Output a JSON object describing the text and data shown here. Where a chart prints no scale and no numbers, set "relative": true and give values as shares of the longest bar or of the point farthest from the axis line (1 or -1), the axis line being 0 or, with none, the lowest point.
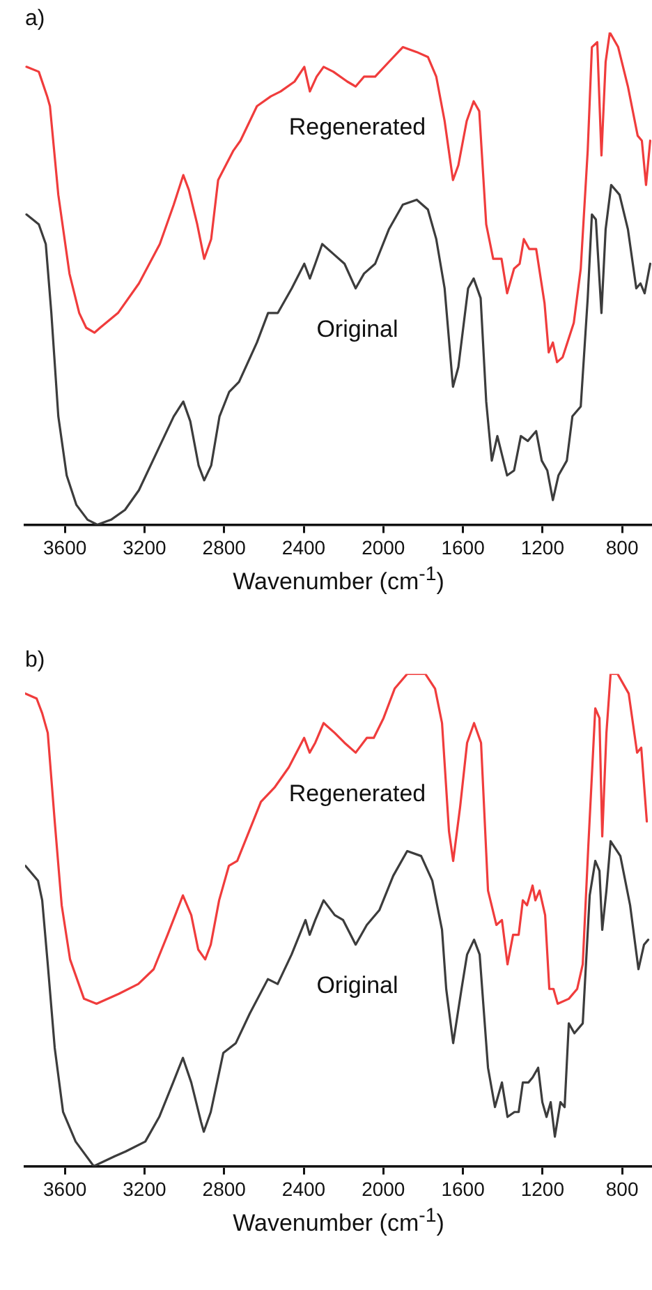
{
  "chart_data": [
    {
      "type": "line",
      "title": "a)",
      "xlabel": "Wavenumber (cm$^{-1}$)",
      "relative": true,
      "xlim": [
        3800,
        650
      ],
      "xticks": [
        3600,
        3200,
        2800,
        2400,
        2000,
        1600,
        1200,
        800
      ],
      "series": [
        {
          "name": "Regenerated",
          "color": "#f03c3c",
          "x": [
            3793,
            3731,
            3689,
            3675,
            3633,
            3577,
            3528,
            3493,
            3451,
            3423,
            3333,
            3228,
            3123,
            3053,
            3005,
            2977,
            2935,
            2900,
            2865,
            2830,
            2753,
            2718,
            2635,
            2565,
            2516,
            2446,
            2397,
            2369,
            2335,
            2300,
            2251,
            2181,
            2139,
            2097,
            2041,
            1972,
            1902,
            1832,
            1776,
            1734,
            1692,
            1650,
            1623,
            1581,
            1546,
            1518,
            1483,
            1448,
            1406,
            1378,
            1343,
            1315,
            1294,
            1267,
            1232,
            1190,
            1169,
            1148,
            1127,
            1099,
            1043,
            1008,
            973,
            952,
            925,
            904,
            883,
            862,
            820,
            771,
            722,
            701,
            680,
            659
          ],
          "values": [
            0.93,
            0.92,
            0.87,
            0.85,
            0.67,
            0.51,
            0.43,
            0.4,
            0.39,
            0.4,
            0.43,
            0.49,
            0.57,
            0.65,
            0.71,
            0.68,
            0.61,
            0.54,
            0.58,
            0.7,
            0.76,
            0.78,
            0.85,
            0.87,
            0.88,
            0.9,
            0.93,
            0.88,
            0.91,
            0.93,
            0.92,
            0.9,
            0.89,
            0.91,
            0.91,
            0.94,
            0.97,
            0.96,
            0.95,
            0.91,
            0.82,
            0.7,
            0.73,
            0.82,
            0.86,
            0.84,
            0.61,
            0.54,
            0.54,
            0.47,
            0.52,
            0.53,
            0.58,
            0.56,
            0.56,
            0.45,
            0.35,
            0.37,
            0.33,
            0.34,
            0.41,
            0.52,
            0.76,
            0.97,
            0.98,
            0.75,
            0.94,
            1.0,
            0.97,
            0.89,
            0.79,
            0.78,
            0.69,
            0.78
          ]
        },
        {
          "name": "Original",
          "color": "#3c3c3c",
          "x": [
            3793,
            3731,
            3696,
            3668,
            3633,
            3591,
            3542,
            3486,
            3437,
            3368,
            3298,
            3228,
            3123,
            3053,
            3005,
            2970,
            2928,
            2900,
            2865,
            2823,
            2774,
            2725,
            2635,
            2579,
            2530,
            2460,
            2397,
            2369,
            2342,
            2307,
            2251,
            2195,
            2139,
            2097,
            2041,
            1972,
            1902,
            1832,
            1776,
            1734,
            1692,
            1650,
            1623,
            1574,
            1546,
            1511,
            1483,
            1455,
            1427,
            1378,
            1343,
            1309,
            1274,
            1232,
            1204,
            1176,
            1148,
            1120,
            1078,
            1050,
            1008,
            973,
            952,
            932,
            904,
            883,
            855,
            813,
            771,
            729,
            708,
            687,
            659
          ],
          "values": [
            0.63,
            0.61,
            0.57,
            0.43,
            0.22,
            0.1,
            0.04,
            0.01,
            0,
            0.01,
            0.03,
            0.07,
            0.16,
            0.22,
            0.25,
            0.21,
            0.12,
            0.09,
            0.12,
            0.22,
            0.27,
            0.29,
            0.37,
            0.43,
            0.43,
            0.48,
            0.53,
            0.5,
            0.53,
            0.57,
            0.55,
            0.53,
            0.48,
            0.51,
            0.53,
            0.6,
            0.65,
            0.66,
            0.64,
            0.58,
            0.48,
            0.28,
            0.32,
            0.48,
            0.5,
            0.46,
            0.25,
            0.13,
            0.18,
            0.1,
            0.11,
            0.18,
            0.17,
            0.19,
            0.13,
            0.11,
            0.05,
            0.1,
            0.13,
            0.22,
            0.24,
            0.46,
            0.63,
            0.62,
            0.43,
            0.6,
            0.69,
            0.67,
            0.6,
            0.48,
            0.49,
            0.47,
            0.53
          ]
        }
      ]
    },
    {
      "type": "line",
      "title": "b)",
      "xlabel": "Wavenumber (cm$^{-1}$)",
      "relative": true,
      "xlim": [
        3800,
        650
      ],
      "xticks": [
        3600,
        3200,
        2800,
        2400,
        2000,
        1600,
        1200,
        800
      ],
      "series": [
        {
          "name": "Regenerated",
          "color": "#f03c3c",
          "x": [
            3798,
            3742,
            3714,
            3686,
            3651,
            3616,
            3574,
            3504,
            3441,
            3329,
            3231,
            3154,
            3084,
            3007,
            2965,
            2930,
            2895,
            2867,
            2825,
            2776,
            2734,
            2615,
            2545,
            2475,
            2398,
            2370,
            2342,
            2300,
            2244,
            2195,
            2139,
            2083,
            2048,
            1999,
            1943,
            1880,
            1789,
            1740,
            1705,
            1670,
            1649,
            1614,
            1579,
            1544,
            1509,
            1474,
            1432,
            1404,
            1376,
            1348,
            1320,
            1299,
            1278,
            1250,
            1236,
            1215,
            1187,
            1166,
            1145,
            1124,
            1068,
            1026,
            998,
            970,
            935,
            914,
            900,
            879,
            858,
            823,
            767,
            725,
            704,
            676
          ],
          "values": [
            0.96,
            0.95,
            0.92,
            0.88,
            0.7,
            0.53,
            0.42,
            0.34,
            0.33,
            0.35,
            0.37,
            0.4,
            0.47,
            0.55,
            0.51,
            0.44,
            0.42,
            0.45,
            0.54,
            0.61,
            0.62,
            0.74,
            0.77,
            0.81,
            0.87,
            0.84,
            0.86,
            0.9,
            0.88,
            0.86,
            0.84,
            0.87,
            0.87,
            0.91,
            0.97,
            1.0,
            1.0,
            0.97,
            0.9,
            0.68,
            0.62,
            0.73,
            0.86,
            0.9,
            0.86,
            0.56,
            0.49,
            0.5,
            0.41,
            0.47,
            0.47,
            0.54,
            0.53,
            0.57,
            0.54,
            0.56,
            0.51,
            0.36,
            0.36,
            0.33,
            0.34,
            0.36,
            0.41,
            0.65,
            0.93,
            0.91,
            0.67,
            0.88,
            1.0,
            1.0,
            0.96,
            0.84,
            0.85,
            0.7
          ]
        },
        {
          "name": "Original",
          "color": "#3c3c3c",
          "x": [
            3798,
            3735,
            3714,
            3686,
            3651,
            3609,
            3546,
            3455,
            3350,
            3294,
            3196,
            3126,
            3056,
            3007,
            2965,
            2916,
            2902,
            2867,
            2804,
            2741,
            2671,
            2580,
            2531,
            2461,
            2391,
            2370,
            2342,
            2300,
            2244,
            2202,
            2139,
            2083,
            2020,
            1950,
            1880,
            1810,
            1754,
            1705,
            1684,
            1649,
            1607,
            1579,
            1544,
            1516,
            1474,
            1439,
            1404,
            1376,
            1341,
            1320,
            1299,
            1271,
            1250,
            1222,
            1201,
            1180,
            1159,
            1138,
            1110,
            1089,
            1068,
            1040,
            998,
            963,
            935,
            914,
            900,
            879,
            858,
            809,
            760,
            718,
            690,
            669
          ],
          "values": [
            0.61,
            0.58,
            0.54,
            0.41,
            0.24,
            0.11,
            0.05,
            0,
            0.02,
            0.03,
            0.05,
            0.1,
            0.17,
            0.22,
            0.17,
            0.09,
            0.07,
            0.11,
            0.23,
            0.25,
            0.31,
            0.38,
            0.37,
            0.43,
            0.5,
            0.47,
            0.5,
            0.54,
            0.51,
            0.5,
            0.45,
            0.49,
            0.52,
            0.59,
            0.64,
            0.63,
            0.58,
            0.48,
            0.36,
            0.25,
            0.36,
            0.43,
            0.46,
            0.43,
            0.2,
            0.12,
            0.17,
            0.1,
            0.11,
            0.11,
            0.17,
            0.17,
            0.18,
            0.2,
            0.13,
            0.1,
            0.13,
            0.06,
            0.13,
            0.12,
            0.29,
            0.27,
            0.29,
            0.55,
            0.62,
            0.6,
            0.48,
            0.56,
            0.66,
            0.63,
            0.53,
            0.4,
            0.45,
            0.46
          ]
        }
      ]
    }
  ]
}
